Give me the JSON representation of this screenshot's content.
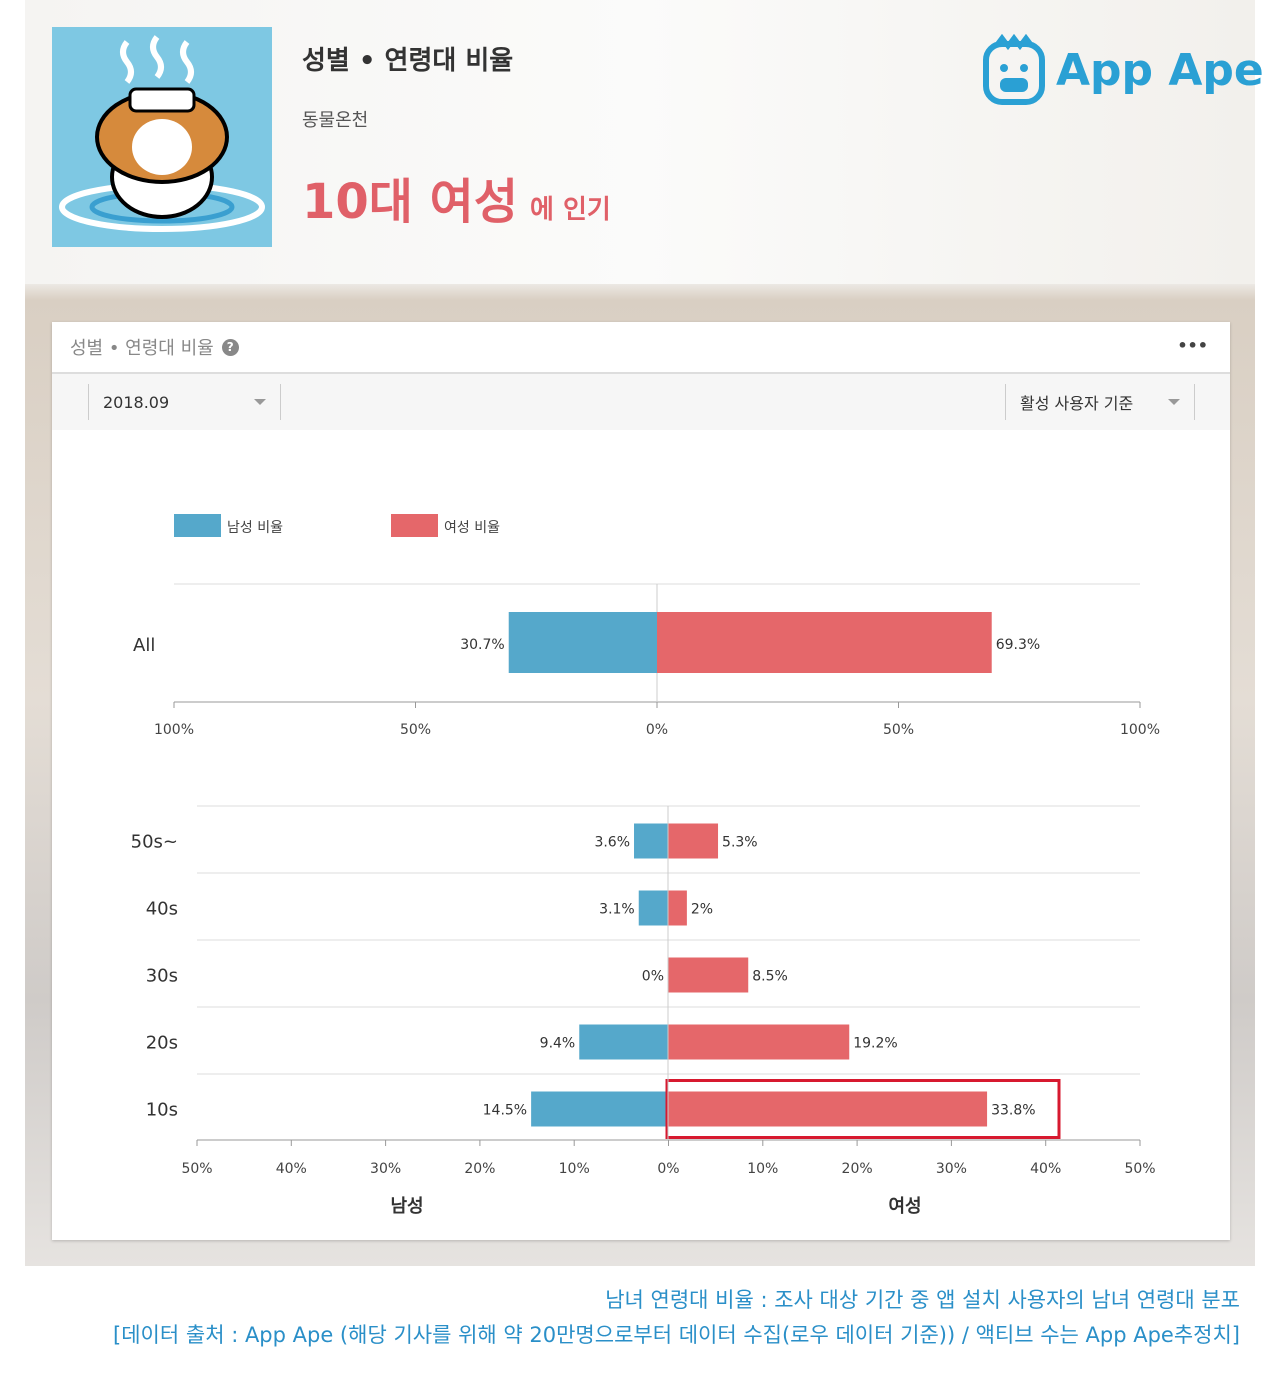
{
  "header": {
    "title": "성별 • 연령대 비율",
    "app_name": "동물온천",
    "popular_big": "10대 여성",
    "popular_small": "에 인기",
    "logo": "App Ape"
  },
  "card": {
    "title": "성별 • 연령대 비율",
    "help_icon": "?",
    "more": "•••",
    "date": "2018.09",
    "basis": "활성 사용자 기준"
  },
  "colors": {
    "male": "#55a8cb",
    "female": "#e5676a",
    "highlight": "#d7192f"
  },
  "chart_data": [
    {
      "type": "bar",
      "orientation": "horizontal-diverging",
      "legend": [
        "남성 비율",
        "여성 비율"
      ],
      "legend_position": "top-left",
      "categories": [
        "All"
      ],
      "series": [
        {
          "name": "남성 비율",
          "values": [
            30.7
          ],
          "labels": [
            "30.7%"
          ]
        },
        {
          "name": "여성 비율",
          "values": [
            69.3
          ],
          "labels": [
            "69.3%"
          ]
        }
      ],
      "xlim": [
        -100,
        100
      ],
      "ticks": [
        "100%",
        "50%",
        "0%",
        "50%",
        "100%"
      ]
    },
    {
      "type": "bar",
      "orientation": "horizontal-diverging",
      "categories": [
        "50s~",
        "40s",
        "30s",
        "20s",
        "10s"
      ],
      "series": [
        {
          "name": "남성",
          "values": [
            3.6,
            3.1,
            0,
            9.4,
            14.5
          ],
          "labels": [
            "3.6%",
            "3.1%",
            "0%",
            "9.4%",
            "14.5%"
          ]
        },
        {
          "name": "여성",
          "values": [
            5.3,
            2,
            8.5,
            19.2,
            33.8
          ],
          "labels": [
            "5.3%",
            "2%",
            "8.5%",
            "19.2%",
            "33.8%"
          ]
        }
      ],
      "xlim": [
        -50,
        50
      ],
      "ticks": [
        "50%",
        "40%",
        "30%",
        "20%",
        "10%",
        "0%",
        "10%",
        "20%",
        "30%",
        "40%",
        "50%"
      ],
      "xlabel_left": "남성",
      "xlabel_right": "여성",
      "highlight": "10s"
    }
  ],
  "footer": {
    "line1": "남녀 연령대 비율 : 조사 대상 기간 중 앱 설치 사용자의 남녀 연령대 분포",
    "line2": "[데이터 출처 : App Ape (해당 기사를 위해 약 20만명으로부터 데이터 수집(로우 데이터 기준)) / 액티브 수는 App Ape추정치]"
  }
}
